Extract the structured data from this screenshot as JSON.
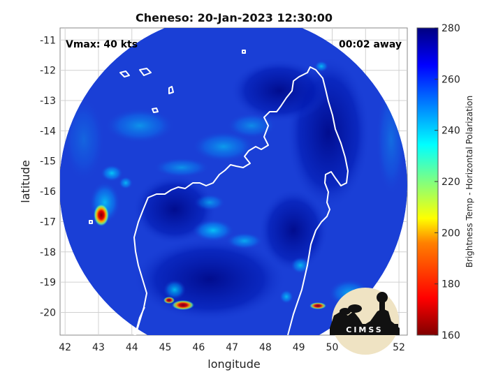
{
  "map": {
    "title": "Cheneso: 20-Jan-2023 12:30:00",
    "xlabel": "longitude",
    "ylabel": "latitude",
    "vmax_label": "Vmax: 40 kts",
    "away_label": "00:02 away",
    "lon_ticks": [
      "42",
      "43",
      "44",
      "45",
      "46",
      "47",
      "48",
      "49",
      "50",
      "51",
      "52"
    ],
    "lat_ticks": [
      "-11",
      "-12",
      "-13",
      "-14",
      "-15",
      "-16",
      "-17",
      "-18",
      "-19",
      "-20"
    ],
    "lon_range": [
      41.85,
      52.25
    ],
    "lat_range": [
      -20.75,
      -10.6
    ],
    "grid": true
  },
  "colorbar": {
    "label": "Brightness Temp - Horizontal Polarization",
    "ticks": [
      "280",
      "260",
      "240",
      "220",
      "200",
      "180",
      "160"
    ],
    "range": [
      160,
      280
    ],
    "colormap": "jet",
    "colors": [
      "#800000",
      "#ff0000",
      "#ff8000",
      "#ffff00",
      "#80ff80",
      "#00ffff",
      "#0080ff",
      "#0000ff",
      "#000080"
    ]
  },
  "logo": {
    "text": "CIMSS"
  },
  "colors": {
    "background_blue": "#1a3fd6",
    "coastline": "#ffffff",
    "grid": "#cccccc"
  }
}
